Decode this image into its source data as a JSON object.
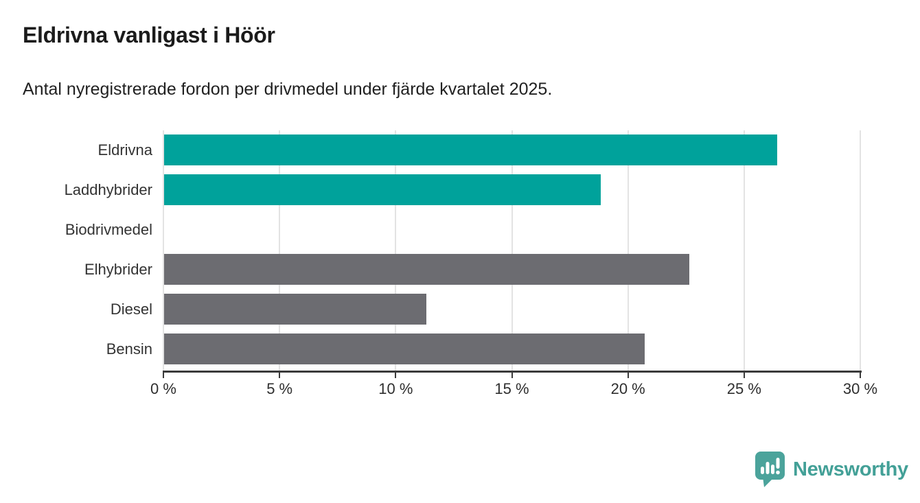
{
  "header": {
    "title": "Eldrivna vanligast i Höör",
    "subtitle": "Antal nyregistrerade fordon per drivmedel under fjärde kvartalet 2025."
  },
  "chart_data": {
    "type": "bar",
    "orientation": "horizontal",
    "title": "Eldrivna vanligast i Höör",
    "subtitle": "Antal nyregistrerade fordon per drivmedel under fjärde kvartalet 2025.",
    "unit": "%",
    "categories": [
      "Eldrivna",
      "Laddhybrider",
      "Biodrivmedel",
      "Elhybrider",
      "Diesel",
      "Bensin"
    ],
    "values": [
      26.4,
      18.8,
      0,
      22.6,
      11.3,
      20.7
    ],
    "bar_colors": [
      "#00a29b",
      "#00a29b",
      "#6c6c71",
      "#6c6c71",
      "#6c6c71",
      "#6c6c71"
    ],
    "xlim": [
      0,
      30
    ],
    "x_tick_values": [
      0,
      5,
      10,
      15,
      20,
      25,
      30
    ],
    "x_tick_labels": [
      "0 %",
      "5 %",
      "10 %",
      "15 %",
      "20 %",
      "25 %",
      "30 %"
    ],
    "grid": true,
    "legend": "none"
  },
  "colors": {
    "highlight_bar": "#00a29b",
    "muted_bar": "#6c6c71",
    "axis": "#3a3a3a",
    "gridline": "#e3e3e3",
    "brand": "#43a097"
  },
  "footer": {
    "brand": "Newsworthy"
  }
}
